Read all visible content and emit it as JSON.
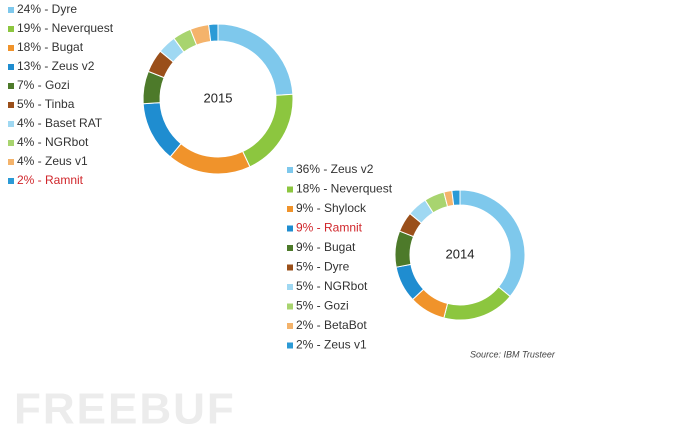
{
  "chart_data": [
    {
      "type": "pie",
      "title": "2015",
      "donut": true,
      "categories": [
        "24% - Dyre",
        "19% - Neverquest",
        "18% - Bugat",
        "13% - Zeus v2",
        "7% - Gozi",
        "5% - Tinba",
        "4% - Baset RAT",
        "4% - NGRbot",
        "4% - Zeus v1",
        "2% - Ramnit"
      ],
      "values": [
        24,
        19,
        18,
        13,
        7,
        5,
        4,
        4,
        4,
        2
      ],
      "colors": [
        "#7ec8ec",
        "#8cc63f",
        "#f0932b",
        "#1f8dd0",
        "#4d7a2a",
        "#9a4f1a",
        "#9fd8f2",
        "#a8d46f",
        "#f4b36b",
        "#2b9ad6"
      ],
      "label_colors": [
        "#333333",
        "#333333",
        "#333333",
        "#333333",
        "#333333",
        "#333333",
        "#333333",
        "#333333",
        "#333333",
        "#d0262b"
      ]
    },
    {
      "type": "pie",
      "title": "2014",
      "donut": true,
      "categories": [
        "36% - Zeus v2",
        "18% - Neverquest",
        "9% - Shylock",
        "9% - Ramnit",
        "9% - Bugat",
        "5% - Dyre",
        "5% - NGRbot",
        "5% - Gozi",
        "2% - BetaBot",
        "2% - Zeus v1"
      ],
      "values": [
        36,
        18,
        9,
        9,
        9,
        5,
        5,
        5,
        2,
        2
      ],
      "colors": [
        "#7ec8ec",
        "#8cc63f",
        "#f0932b",
        "#1f8dd0",
        "#4d7a2a",
        "#9a4f1a",
        "#9fd8f2",
        "#a8d46f",
        "#f4b36b",
        "#2b9ad6"
      ],
      "label_colors": [
        "#333333",
        "#333333",
        "#333333",
        "#d0262b",
        "#333333",
        "#333333",
        "#333333",
        "#333333",
        "#333333",
        "#333333"
      ]
    }
  ],
  "source": "Source: IBM Trusteer",
  "watermark": "FREEBUF"
}
